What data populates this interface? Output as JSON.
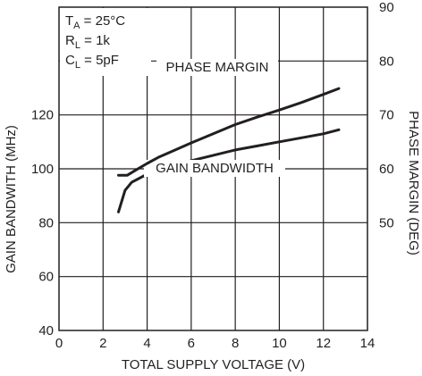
{
  "chart_data": {
    "type": "line",
    "xlabel": "TOTAL SUPPLY VOLTAGE (V)",
    "ylabel_left": "GAIN BANDWITH (MHz)",
    "ylabel_right": "PHASE MARGIN (DEG)",
    "xlim": [
      0,
      14
    ],
    "xticks": [
      "0",
      "2",
      "4",
      "6",
      "8",
      "10",
      "12",
      "14"
    ],
    "ylim_left": [
      40,
      160
    ],
    "yticks_left": [
      "40",
      "60",
      "80",
      "100",
      "120"
    ],
    "ylim_right": [
      30,
      90
    ],
    "yticks_right": [
      "50",
      "60",
      "70",
      "80",
      "90"
    ],
    "grid": true,
    "conditions": [
      {
        "prefix": "T",
        "sub": "A",
        "rest": " = 25°C"
      },
      {
        "prefix": "R",
        "sub": "L",
        "rest": " = 1k"
      },
      {
        "prefix": "C",
        "sub": "L",
        "rest": " = 5pF"
      }
    ],
    "series": [
      {
        "name": "GAIN BANDWIDTH",
        "axis": "left",
        "x": [
          2.7,
          3.0,
          3.3,
          4.0,
          5.0,
          6.0,
          7.0,
          8.0,
          9.0,
          10.0,
          11.0,
          12.0,
          12.7
        ],
        "y": [
          84,
          92,
          95,
          98,
          101,
          103,
          105,
          107,
          108.5,
          110,
          111.5,
          113,
          114.5
        ]
      },
      {
        "name": "PHASE MARGIN",
        "axis": "right",
        "x": [
          2.7,
          3.1,
          3.5,
          4.0,
          4.5,
          5.0,
          6.0,
          7.0,
          8.0,
          9.0,
          10.0,
          11.0,
          12.0,
          12.7
        ],
        "y": [
          58.8,
          58.8,
          59.8,
          61.0,
          62.1,
          63.0,
          64.8,
          66.5,
          68.2,
          69.6,
          70.9,
          72.3,
          73.8,
          74.9
        ]
      }
    ]
  }
}
